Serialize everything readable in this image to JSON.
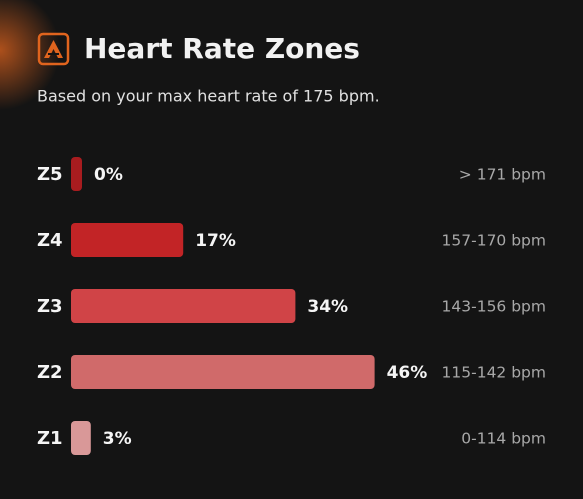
{
  "chart_data": {
    "type": "bar",
    "orientation": "horizontal",
    "title": "Heart Rate Zones",
    "subtitle": "Based on your max heart rate of 175 bpm.",
    "categories": [
      "Z5",
      "Z4",
      "Z3",
      "Z2",
      "Z1"
    ],
    "values": [
      0,
      17,
      34,
      46,
      3
    ],
    "value_labels": [
      "0%",
      "17%",
      "34%",
      "46%",
      "3%"
    ],
    "range_labels": [
      "> 171 bpm",
      "157-170 bpm",
      "143-156 bpm",
      "115-142 bpm",
      "0-114 bpm"
    ],
    "colors": [
      "#a81c1f",
      "#c22426",
      "#d04447",
      "#d06a6a",
      "#d99898"
    ]
  }
}
